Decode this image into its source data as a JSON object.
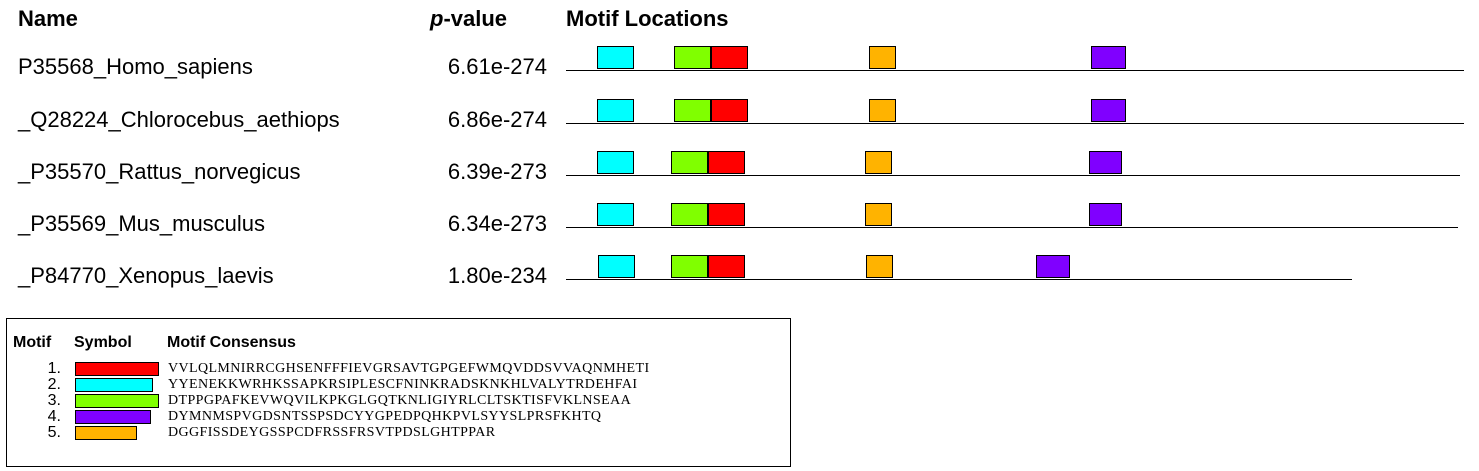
{
  "headers": {
    "name": "Name",
    "pvalue_italic": "p",
    "pvalue_rest": "-value",
    "motif_locations": "Motif Locations"
  },
  "motif_colors": {
    "1": "#ff0000",
    "2": "#00ffff",
    "3": "#80ff00",
    "4": "#8000ff",
    "5": "#ffb300"
  },
  "sequences": [
    {
      "name": "P35568_Homo_sapiens",
      "pvalue": "6.61e-274",
      "motifs": [
        {
          "motif": 2
        },
        {
          "motif": 3
        },
        {
          "motif": 1
        },
        {
          "motif": 5
        },
        {
          "motif": 4
        }
      ]
    },
    {
      "name": "_Q28224_Chlorocebus_aethiops",
      "pvalue": "6.86e-274",
      "motifs": [
        {
          "motif": 2
        },
        {
          "motif": 3
        },
        {
          "motif": 1
        },
        {
          "motif": 5
        },
        {
          "motif": 4
        }
      ]
    },
    {
      "name": "_P35570_Rattus_norvegicus",
      "pvalue": "6.39e-273",
      "motifs": [
        {
          "motif": 2
        },
        {
          "motif": 3
        },
        {
          "motif": 1
        },
        {
          "motif": 5
        },
        {
          "motif": 4
        }
      ]
    },
    {
      "name": "_P35569_Mus_musculus",
      "pvalue": "6.34e-273",
      "motifs": [
        {
          "motif": 2
        },
        {
          "motif": 3
        },
        {
          "motif": 1
        },
        {
          "motif": 5
        },
        {
          "motif": 4
        }
      ]
    },
    {
      "name": "_P84770_Xenopus_laevis",
      "pvalue": "1.80e-234",
      "motifs": [
        {
          "motif": 2
        },
        {
          "motif": 3
        },
        {
          "motif": 1
        },
        {
          "motif": 5
        },
        {
          "motif": 4
        }
      ]
    }
  ],
  "legend": {
    "headers": {
      "motif": "Motif",
      "symbol": "Symbol",
      "consensus": "Motif Consensus"
    },
    "motifs": [
      {
        "num": "1.",
        "motif": 1,
        "consensus": "VVLQLMNIRRCGHSENFFFIEVGRSAVTGPGEFWMQVDDSVVAQNMHETI"
      },
      {
        "num": "2.",
        "motif": 2,
        "consensus": "YYENEKKWRHKSSAPKRSIPLESCFNINKRADSKNKHLVALYTRDEHFAI"
      },
      {
        "num": "3.",
        "motif": 3,
        "consensus": "DTPPGPAFKEVWQVILKPKGLGQTKNLIGIYRLCLTSKTISFVKLNSEAA"
      },
      {
        "num": "4.",
        "motif": 4,
        "consensus": "DYMNMSPVGDSNTSSPSDCYYGPEDPQHKPVLSYYSLPRSFKHTQ"
      },
      {
        "num": "5.",
        "motif": 5,
        "consensus": "DGGFISSDEYGSSPCDFRSSFRSVTPDSLGHTPPAR"
      }
    ]
  }
}
